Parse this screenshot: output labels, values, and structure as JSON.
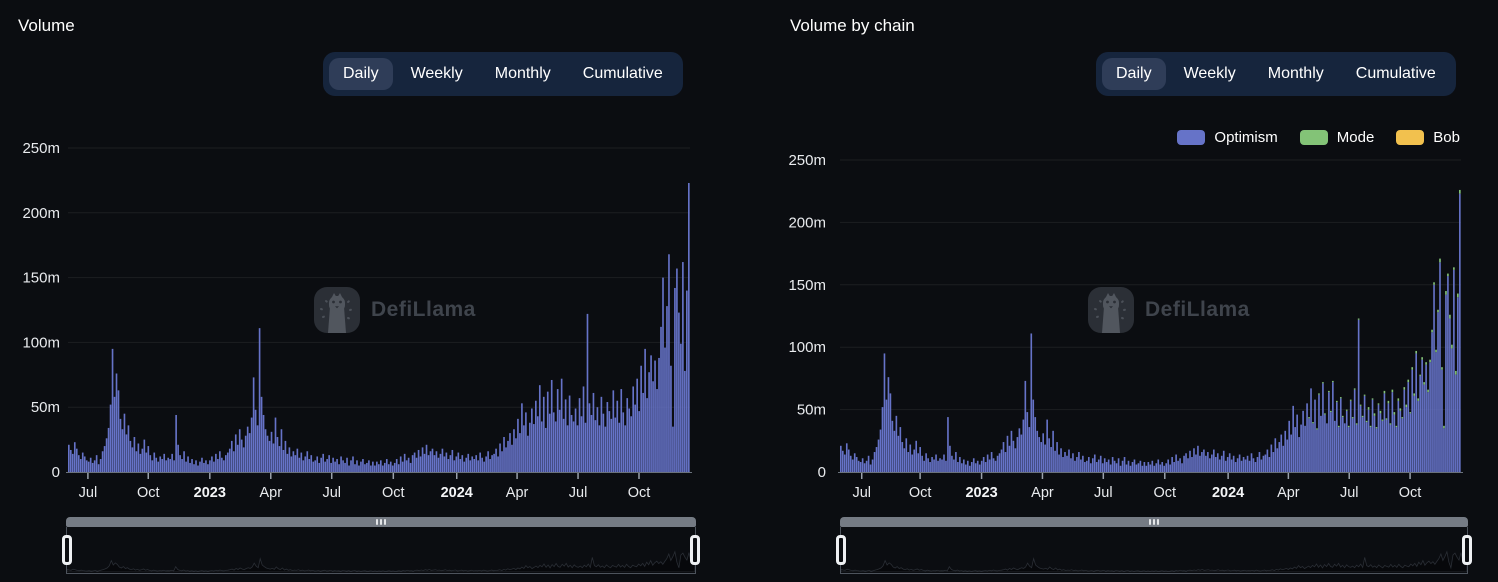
{
  "page": {
    "background": "#0b0d11",
    "accent_bar_color": "#6673c8"
  },
  "tabs": {
    "items": [
      {
        "label": "Daily",
        "active": true
      },
      {
        "label": "Weekly",
        "active": false
      },
      {
        "label": "Monthly",
        "active": false
      },
      {
        "label": "Cumulative",
        "active": false
      }
    ]
  },
  "watermark": {
    "text": "DefiLlama"
  },
  "legend": {
    "items": [
      {
        "label": "Optimism",
        "color": "#6673c8"
      },
      {
        "label": "Mode",
        "color": "#83c377"
      },
      {
        "label": "Bob",
        "color": "#f2c14e"
      }
    ]
  },
  "chart_data": [
    {
      "type": "bar",
      "title": "Volume",
      "interval_options": [
        "Daily",
        "Weekly",
        "Monthly",
        "Cumulative"
      ],
      "selected_interval": "Daily",
      "unit": "USD millions (m)",
      "ylim": [
        0,
        250
      ],
      "grid": true,
      "bar_color": "#6673c8",
      "yticks": [
        {
          "label": "0",
          "value": 0
        },
        {
          "label": "50m",
          "value": 50
        },
        {
          "label": "100m",
          "value": 100
        },
        {
          "label": "150m",
          "value": 150
        },
        {
          "label": "200m",
          "value": 200
        },
        {
          "label": "250m",
          "value": 250
        }
      ],
      "xticks": [
        {
          "label": "Jul",
          "pos": 0.032,
          "bold": false
        },
        {
          "label": "Oct",
          "pos": 0.129,
          "bold": false
        },
        {
          "label": "2023",
          "pos": 0.228,
          "bold": true
        },
        {
          "label": "Apr",
          "pos": 0.326,
          "bold": false
        },
        {
          "label": "Jul",
          "pos": 0.424,
          "bold": false
        },
        {
          "label": "Oct",
          "pos": 0.523,
          "bold": false
        },
        {
          "label": "2024",
          "pos": 0.625,
          "bold": true
        },
        {
          "label": "Apr",
          "pos": 0.722,
          "bold": false
        },
        {
          "label": "Jul",
          "pos": 0.82,
          "bold": false
        },
        {
          "label": "Oct",
          "pos": 0.918,
          "bold": false
        }
      ],
      "x_range": "Jun 2022 - Dec 2024 (daily bars, ~3-day samples)",
      "values_m": [
        21,
        17,
        14,
        23,
        18,
        13,
        10,
        15,
        12,
        9,
        8,
        11,
        7,
        9,
        13,
        6,
        10,
        16,
        20,
        26,
        34,
        52,
        95,
        58,
        76,
        63,
        41,
        33,
        45,
        29,
        36,
        24,
        19,
        27,
        16,
        22,
        14,
        18,
        25,
        15,
        20,
        13,
        9,
        15,
        11,
        8,
        12,
        10,
        14,
        9,
        11,
        10,
        14,
        9,
        44,
        21,
        13,
        10,
        16,
        8,
        12,
        7,
        10,
        6,
        9,
        5,
        8,
        11,
        7,
        9,
        6,
        9,
        12,
        8,
        14,
        10,
        16,
        11,
        9,
        13,
        15,
        18,
        24,
        16,
        29,
        21,
        33,
        25,
        19,
        28,
        35,
        30,
        42,
        73,
        48,
        36,
        111,
        58,
        44,
        33,
        28,
        24,
        31,
        22,
        42,
        27,
        20,
        33,
        17,
        24,
        14,
        19,
        12,
        16,
        13,
        18,
        11,
        15,
        9,
        12,
        16,
        10,
        13,
        8,
        9,
        12,
        7,
        11,
        14,
        8,
        10,
        13,
        7,
        11,
        8,
        10,
        6,
        12,
        9,
        7,
        11,
        5,
        9,
        12,
        6,
        9,
        5,
        8,
        10,
        6,
        7,
        9,
        5,
        8,
        5,
        8,
        6,
        9,
        5,
        7,
        10,
        6,
        8,
        5,
        7,
        10,
        6,
        12,
        8,
        14,
        9,
        11,
        7,
        13,
        15,
        11,
        17,
        12,
        19,
        14,
        21,
        13,
        16,
        18,
        13,
        16,
        11,
        14,
        18,
        12,
        15,
        10,
        13,
        17,
        9,
        12,
        15,
        10,
        13,
        8,
        11,
        14,
        9,
        12,
        10,
        13,
        9,
        15,
        11,
        8,
        12,
        16,
        10,
        13,
        14,
        18,
        12,
        22,
        16,
        27,
        19,
        24,
        30,
        21,
        33,
        26,
        41,
        30,
        53,
        36,
        46,
        28,
        38,
        49,
        37,
        55,
        43,
        67,
        39,
        58,
        34,
        62,
        45,
        71,
        46,
        39,
        64,
        48,
        72,
        41,
        56,
        36,
        59,
        44,
        39,
        49,
        36,
        57,
        43,
        66,
        38,
        122,
        53,
        44,
        61,
        40,
        50,
        36,
        58,
        45,
        35,
        54,
        47,
        41,
        63,
        42,
        55,
        38,
        64,
        46,
        36,
        57,
        49,
        43,
        66,
        52,
        72,
        47,
        82,
        61,
        95,
        57,
        77,
        90,
        70,
        86,
        64,
        88,
        112,
        150,
        96,
        128,
        168,
        82,
        35,
        142,
        157,
        123,
        99,
        162,
        78,
        140,
        223
      ]
    },
    {
      "type": "bar-stacked",
      "title": "Volume by chain",
      "interval_options": [
        "Daily",
        "Weekly",
        "Monthly",
        "Cumulative"
      ],
      "selected_interval": "Daily",
      "unit": "USD millions (m)",
      "ylim": [
        0,
        250
      ],
      "grid": true,
      "legend_position": "top-right",
      "yticks": [
        {
          "label": "0",
          "value": 0
        },
        {
          "label": "50m",
          "value": 50
        },
        {
          "label": "100m",
          "value": 100
        },
        {
          "label": "150m",
          "value": 150
        },
        {
          "label": "200m",
          "value": 200
        },
        {
          "label": "250m",
          "value": 250
        }
      ],
      "xticks": [
        {
          "label": "Jul",
          "pos": 0.035,
          "bold": false
        },
        {
          "label": "Oct",
          "pos": 0.129,
          "bold": false
        },
        {
          "label": "2023",
          "pos": 0.228,
          "bold": true
        },
        {
          "label": "Apr",
          "pos": 0.326,
          "bold": false
        },
        {
          "label": "Jul",
          "pos": 0.424,
          "bold": false
        },
        {
          "label": "Oct",
          "pos": 0.523,
          "bold": false
        },
        {
          "label": "2024",
          "pos": 0.625,
          "bold": true
        },
        {
          "label": "Apr",
          "pos": 0.722,
          "bold": false
        },
        {
          "label": "Jul",
          "pos": 0.82,
          "bold": false
        },
        {
          "label": "Oct",
          "pos": 0.918,
          "bold": false
        }
      ],
      "x_range": "Jun 2022 - Dec 2024 (daily bars, ~3-day samples)",
      "series": [
        {
          "name": "Optimism",
          "color": "#6673c8",
          "values_m": [
            21,
            17,
            14,
            23,
            18,
            13,
            10,
            15,
            12,
            9,
            8,
            11,
            7,
            9,
            13,
            6,
            10,
            16,
            20,
            26,
            34,
            52,
            95,
            58,
            76,
            63,
            41,
            33,
            45,
            29,
            36,
            24,
            19,
            27,
            16,
            22,
            14,
            18,
            25,
            15,
            20,
            13,
            9,
            15,
            11,
            8,
            12,
            10,
            14,
            9,
            11,
            10,
            14,
            9,
            44,
            21,
            13,
            10,
            16,
            8,
            12,
            7,
            10,
            6,
            9,
            5,
            8,
            11,
            7,
            9,
            6,
            9,
            12,
            8,
            14,
            10,
            16,
            11,
            9,
            13,
            15,
            18,
            24,
            16,
            29,
            21,
            33,
            25,
            19,
            28,
            35,
            30,
            42,
            73,
            48,
            36,
            111,
            58,
            44,
            33,
            28,
            24,
            31,
            22,
            42,
            27,
            20,
            33,
            17,
            24,
            14,
            19,
            12,
            16,
            13,
            18,
            11,
            15,
            9,
            12,
            16,
            10,
            13,
            8,
            9,
            12,
            7,
            11,
            14,
            8,
            10,
            13,
            7,
            11,
            8,
            10,
            6,
            12,
            9,
            7,
            11,
            5,
            9,
            12,
            6,
            9,
            5,
            8,
            10,
            6,
            7,
            9,
            5,
            8,
            5,
            8,
            6,
            9,
            5,
            7,
            10,
            6,
            8,
            5,
            7,
            10,
            6,
            12,
            8,
            14,
            9,
            11,
            7,
            13,
            15,
            11,
            17,
            12,
            19,
            14,
            21,
            13,
            16,
            18,
            13,
            16,
            11,
            14,
            18,
            12,
            15,
            10,
            13,
            17,
            9,
            12,
            15,
            10,
            13,
            8,
            11,
            14,
            9,
            12,
            10,
            13,
            9,
            15,
            11,
            8,
            12,
            16,
            10,
            13,
            14,
            18,
            12,
            22,
            16,
            27,
            19,
            24,
            30,
            21,
            33,
            26,
            41,
            30,
            53,
            36,
            46,
            28,
            38,
            49,
            37,
            55,
            43,
            67,
            39,
            58,
            34,
            62,
            45,
            71,
            46,
            39,
            64,
            48,
            72,
            41,
            56,
            36,
            59,
            44,
            39,
            49,
            36,
            57,
            43,
            66,
            38,
            122,
            53,
            44,
            61,
            40,
            50,
            36,
            58,
            45,
            35,
            54,
            47,
            41,
            63,
            42,
            55,
            38,
            64,
            46,
            36,
            57,
            49,
            43,
            66,
            52,
            72,
            47,
            82,
            61,
            95,
            57,
            77,
            90,
            70,
            86,
            64,
            88,
            112,
            150,
            96,
            128,
            168,
            82,
            35,
            142,
            157,
            123,
            99,
            162,
            78,
            140,
            223
          ]
        },
        {
          "name": "Mode",
          "color": "#83c377",
          "sparse": {
            "start": 236,
            "values_m": [
              1,
              0,
              1,
              0,
              1,
              1,
              0,
              1,
              1,
              0,
              1,
              1,
              1,
              0,
              1,
              1,
              1,
              1,
              0,
              1,
              1,
              1,
              1,
              1,
              1,
              1,
              1,
              1,
              1,
              1,
              2,
              1,
              1,
              2,
              1,
              1,
              2,
              1,
              2,
              1,
              2,
              1,
              2,
              2,
              1,
              2,
              2,
              1,
              2,
              2,
              2,
              1,
              2,
              2,
              2,
              2,
              1,
              2,
              2,
              2,
              2,
              2,
              2,
              2,
              2,
              2,
              3,
              2,
              2,
              3,
              2,
              3,
              3,
              2,
              3,
              3,
              3
            ]
          }
        },
        {
          "name": "Bob",
          "color": "#f2c14e",
          "values_m": []
        }
      ]
    }
  ]
}
